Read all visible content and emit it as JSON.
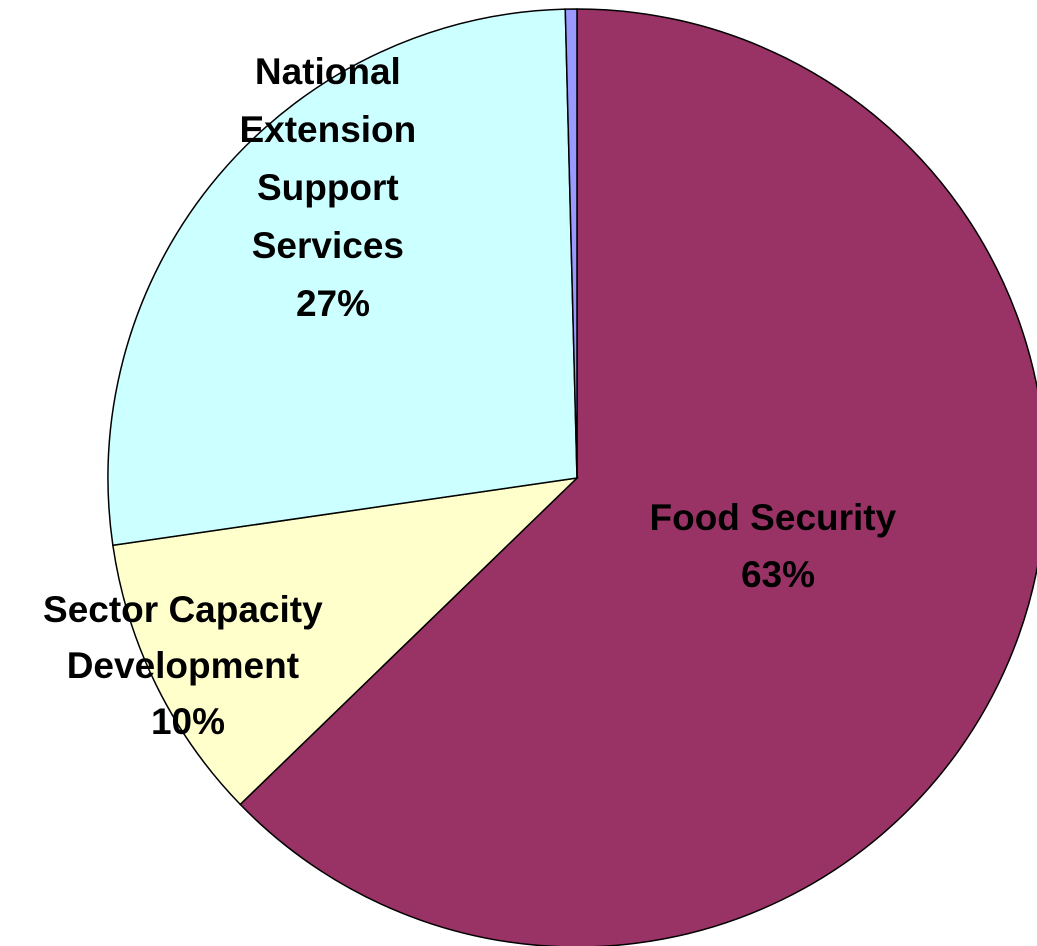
{
  "chart_data": {
    "type": "pie",
    "title": "",
    "slices": [
      {
        "name": "Food Security",
        "label_lines": [
          "Food Security",
          "63%"
        ],
        "value": 63,
        "color": "#993366"
      },
      {
        "name": "Sector Capacity Development",
        "label_lines": [
          "Sector Capacity",
          "Development",
          "10%"
        ],
        "value": 10,
        "color": "#FFFFCC"
      },
      {
        "name": "National Extension Support Services",
        "label_lines": [
          "National",
          "Extension",
          "Support",
          "Services",
          "27%"
        ],
        "value": 27,
        "color": "#CCFFFF"
      },
      {
        "name": "",
        "label_lines": [],
        "value": 0.4,
        "color": "#9999FF"
      }
    ],
    "start_angle_deg": 0,
    "direction": "clockwise",
    "legend": "none",
    "border_color": "#000000"
  }
}
